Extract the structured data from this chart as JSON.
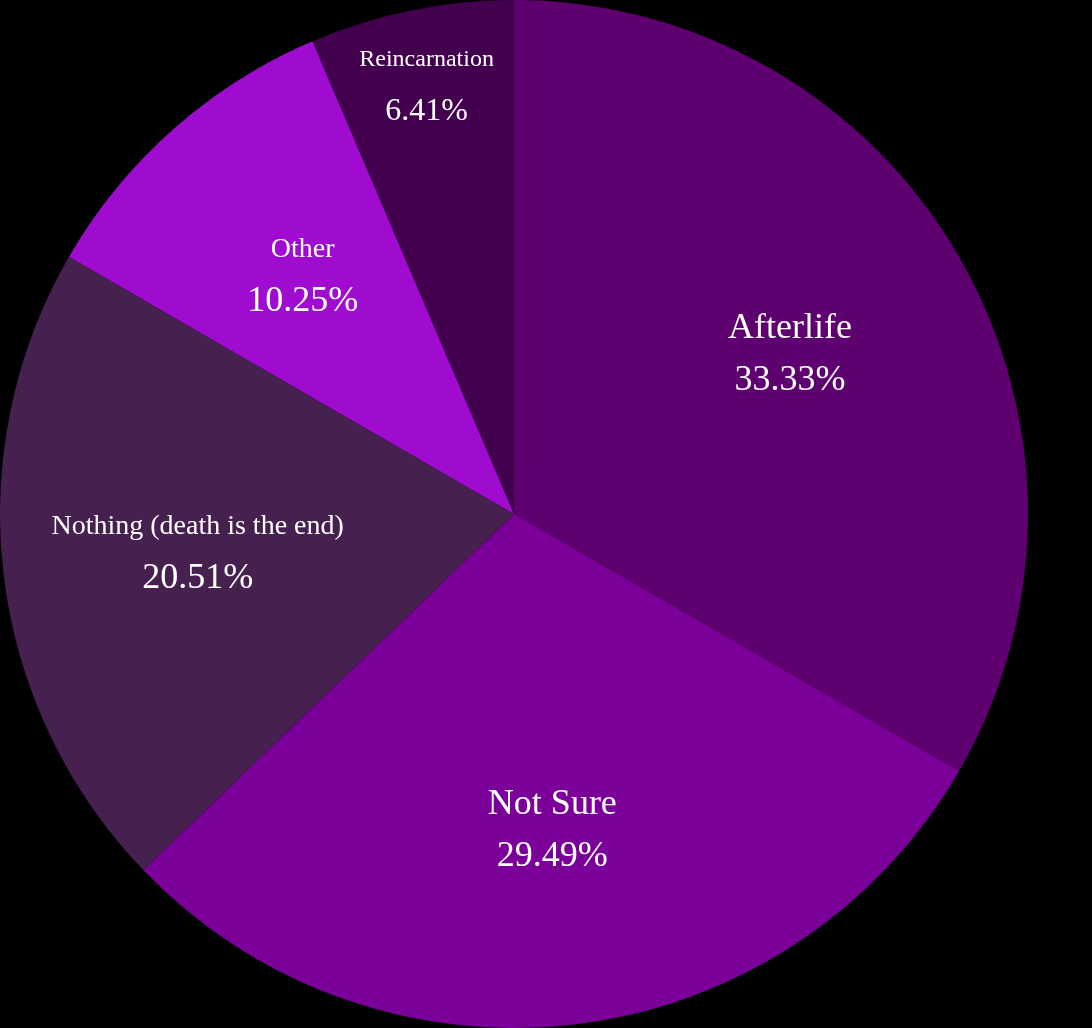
{
  "chart_data": {
    "type": "pie",
    "categories": [
      "Afterlife",
      "Not Sure",
      "Nothing (death is the end)",
      "Other",
      "Reincarnation"
    ],
    "values": [
      33.33,
      29.49,
      20.51,
      10.25,
      6.41
    ],
    "value_labels": [
      "33.33%",
      "29.49%",
      "20.51%",
      "10.25%",
      "6.41%"
    ],
    "colors": [
      "#5e006f",
      "#7b009a",
      "#46204e",
      "#a00bd0",
      "#43004f"
    ],
    "legend": false
  }
}
